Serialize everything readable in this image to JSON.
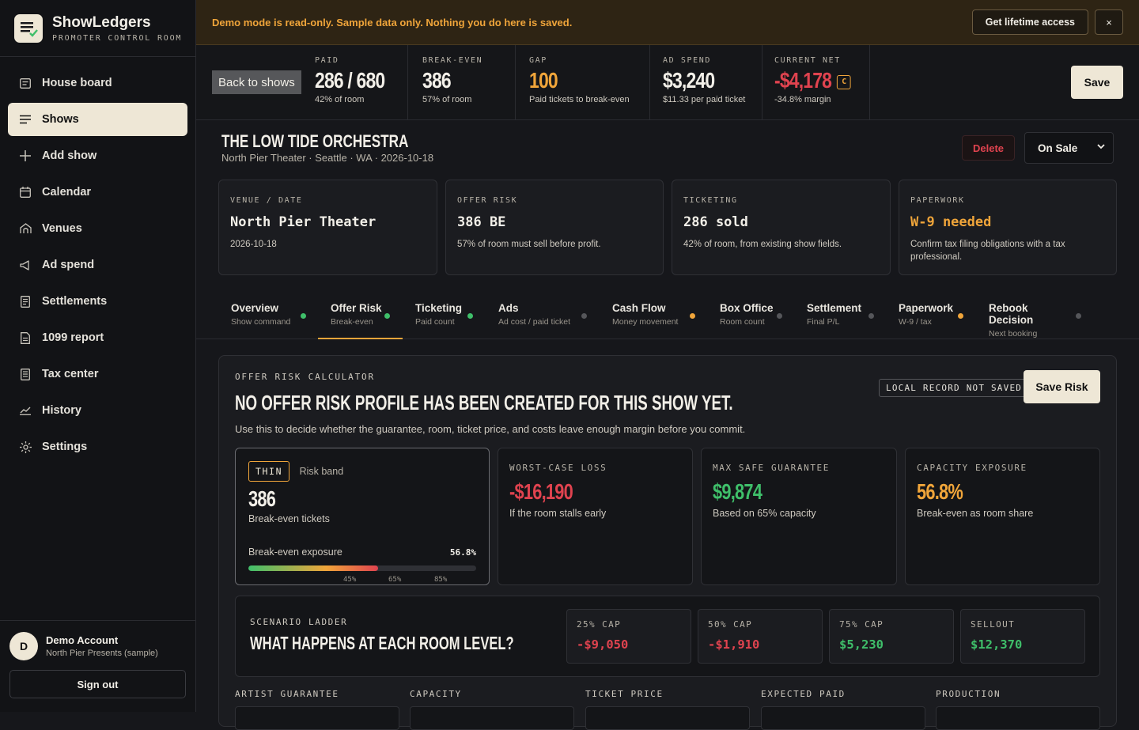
{
  "brand": {
    "title": "ShowLedgers",
    "subtitle": "PROMOTER CONTROL ROOM"
  },
  "nav": [
    {
      "label": "House board",
      "icon": "board-icon"
    },
    {
      "label": "Shows",
      "icon": "list-icon",
      "active": true
    },
    {
      "label": "Add show",
      "icon": "plus-icon"
    },
    {
      "label": "Calendar",
      "icon": "calendar-icon"
    },
    {
      "label": "Venues",
      "icon": "venue-icon"
    },
    {
      "label": "Ad spend",
      "icon": "megaphone-icon"
    },
    {
      "label": "Settlements",
      "icon": "receipt-icon"
    },
    {
      "label": "1099 report",
      "icon": "document-icon"
    },
    {
      "label": "Tax center",
      "icon": "tax-icon"
    },
    {
      "label": "History",
      "icon": "chart-icon"
    },
    {
      "label": "Settings",
      "icon": "gear-icon"
    }
  ],
  "account": {
    "initial": "D",
    "name": "Demo Account",
    "org": "North Pier Presents (sample)",
    "signout": "Sign out"
  },
  "banner": {
    "text": "Demo mode is read-only. Sample data only. Nothing you do here is saved.",
    "cta": "Get lifetime access",
    "close": "×"
  },
  "stats": {
    "back": "Back to shows",
    "items": [
      {
        "label": "PAID",
        "value": "286 / 680",
        "sub": "42% of room",
        "color": "#f2efe8"
      },
      {
        "label": "BREAK-EVEN",
        "value": "386",
        "sub": "57% of room",
        "color": "#f2efe8"
      },
      {
        "label": "GAP",
        "value": "100",
        "sub": "Paid tickets to break-even",
        "color": "#f0a53a"
      },
      {
        "label": "AD SPEND",
        "value": "$3,240",
        "sub": "$11.33 per paid ticket",
        "color": "#f2efe8"
      },
      {
        "label": "CURRENT NET",
        "value": "-$4,178",
        "sub": "-34.8% margin",
        "color": "#e0434f",
        "badge": "C"
      }
    ],
    "save": "Save"
  },
  "show": {
    "title": "THE LOW TIDE ORCHESTRA",
    "subtitle": "North Pier Theater · Seattle · WA · 2026-10-18",
    "delete": "Delete",
    "status": "On Sale"
  },
  "info_cards": [
    {
      "label": "VENUE / DATE",
      "value": "North Pier Theater",
      "sub": "2026-10-18"
    },
    {
      "label": "OFFER RISK",
      "value": "386 BE",
      "sub": "57% of room must sell before profit."
    },
    {
      "label": "TICKETING",
      "value": "286 sold",
      "sub": "42% of room, from existing show fields."
    },
    {
      "label": "PAPERWORK",
      "value": "W-9 needed",
      "sub": "Confirm tax filing obligations with a tax professional.",
      "warn": true
    }
  ],
  "tabs": [
    {
      "title": "Overview",
      "sub": "Show command",
      "dot": "#3fbf6a"
    },
    {
      "title": "Offer Risk",
      "sub": "Break-even",
      "dot": "#3fbf6a",
      "active": true
    },
    {
      "title": "Ticketing",
      "sub": "Paid count",
      "dot": "#3fbf6a"
    },
    {
      "title": "Ads",
      "sub": "Ad cost / paid ticket",
      "dot": "#55565a"
    },
    {
      "title": "Cash Flow",
      "sub": "Money movement",
      "dot": "#f0a53a"
    },
    {
      "title": "Box Office",
      "sub": "Room count",
      "dot": "#55565a"
    },
    {
      "title": "Settlement",
      "sub": "Final P/L",
      "dot": "#55565a"
    },
    {
      "title": "Paperwork",
      "sub": "W-9 / tax",
      "dot": "#f0a53a"
    },
    {
      "title": "Rebook Decision",
      "sub": "Next booking",
      "dot": "#55565a"
    }
  ],
  "calc": {
    "label": "OFFER RISK CALCULATOR",
    "title": "NO OFFER RISK PROFILE HAS BEEN CREATED FOR THIS SHOW YET.",
    "desc": "Use this to decide whether the guarantee, room, ticket price, and costs leave enough margin before you commit.",
    "local_badge": "LOCAL RECORD NOT SAVED",
    "save_risk": "Save Risk",
    "risk": {
      "band_badge": "THIN",
      "band_label": "Risk band",
      "value": "386",
      "value_sub": "Break-even tickets",
      "exposure_label": "Break-even exposure",
      "exposure_value": "56.8%",
      "exposure_fraction": 0.568,
      "ticks": [
        "45%",
        "65%",
        "85%"
      ]
    },
    "metrics": [
      {
        "label": "WORST-CASE LOSS",
        "value": "-$16,190",
        "sub": "If the room stalls early",
        "tone": "red"
      },
      {
        "label": "MAX SAFE GUARANTEE",
        "value": "$9,874",
        "sub": "Based on 65% capacity",
        "tone": "green"
      },
      {
        "label": "CAPACITY EXPOSURE",
        "value": "56.8%",
        "sub": "Break-even as room share",
        "tone": "amber"
      }
    ],
    "ladder": {
      "label": "SCENARIO LADDER",
      "title": "WHAT HAPPENS AT EACH ROOM LEVEL?",
      "cells": [
        {
          "label": "25% CAP",
          "value": "-$9,050",
          "tone": "red"
        },
        {
          "label": "50% CAP",
          "value": "-$1,910",
          "tone": "red"
        },
        {
          "label": "75% CAP",
          "value": "$5,230",
          "tone": "green"
        },
        {
          "label": "SELLOUT",
          "value": "$12,370",
          "tone": "green"
        }
      ]
    },
    "fields": [
      "ARTIST GUARANTEE",
      "CAPACITY",
      "TICKET PRICE",
      "EXPECTED PAID",
      "PRODUCTION"
    ]
  }
}
